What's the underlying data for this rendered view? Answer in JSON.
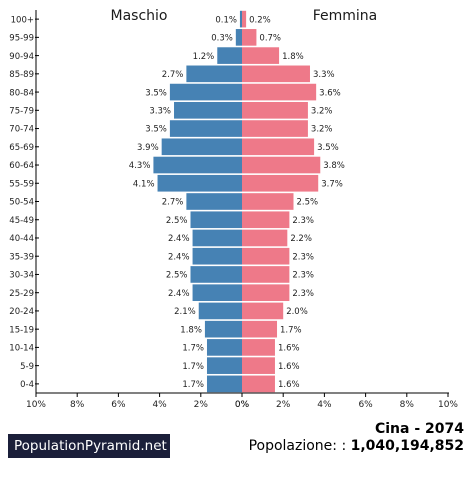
{
  "chart_data": {
    "type": "bar",
    "orientation": "horizontal-pyramid",
    "left_label": "Maschio",
    "right_label": "Femmina",
    "categories": [
      "100+",
      "95-99",
      "90-94",
      "85-89",
      "80-84",
      "75-79",
      "70-74",
      "65-69",
      "60-64",
      "55-59",
      "50-54",
      "45-49",
      "40-44",
      "35-39",
      "30-34",
      "25-29",
      "20-24",
      "15-19",
      "10-14",
      "5-9",
      "0-4"
    ],
    "series": [
      {
        "name": "Maschio",
        "color": "#4682b4",
        "values": [
          0.1,
          0.3,
          1.2,
          2.7,
          3.5,
          3.3,
          3.5,
          3.9,
          4.3,
          4.1,
          2.7,
          2.5,
          2.4,
          2.4,
          2.5,
          2.4,
          2.1,
          1.8,
          1.7,
          1.7,
          1.7
        ],
        "labels": [
          "0.1%",
          "0.3%",
          "1.2%",
          "2.7%",
          "3.5%",
          "3.3%",
          "3.5%",
          "3.9%",
          "4.3%",
          "4.1%",
          "2.7%",
          "2.5%",
          "2.4%",
          "2.4%",
          "2.5%",
          "2.4%",
          "2.1%",
          "1.8%",
          "1.7%",
          "1.7%",
          "1.7%"
        ]
      },
      {
        "name": "Femmina",
        "color": "#ee7989",
        "values": [
          0.2,
          0.7,
          1.8,
          3.3,
          3.6,
          3.2,
          3.2,
          3.5,
          3.8,
          3.7,
          2.5,
          2.3,
          2.2,
          2.3,
          2.3,
          2.3,
          2.0,
          1.7,
          1.6,
          1.6,
          1.6
        ],
        "labels": [
          "0.2%",
          "0.7%",
          "1.8%",
          "3.3%",
          "3.6%",
          "3.2%",
          "3.2%",
          "3.5%",
          "3.8%",
          "3.7%",
          "2.5%",
          "2.3%",
          "2.2%",
          "2.3%",
          "2.3%",
          "2.3%",
          "2.0%",
          "1.7%",
          "1.6%",
          "1.6%",
          "1.6%"
        ]
      }
    ],
    "xlim": [
      0,
      10
    ],
    "x_ticks_left": [
      "10%",
      "8%",
      "6%",
      "4%",
      "2%",
      "0%"
    ],
    "x_ticks_right": [
      "0%",
      "2%",
      "4%",
      "6%",
      "8%",
      "10%"
    ],
    "grid": false
  },
  "footer": {
    "brand": "PopulationPyramid.net",
    "country_year": "Cina - 2074",
    "population_label": "Popolazione: :",
    "population_value": "1,040,194,852"
  }
}
